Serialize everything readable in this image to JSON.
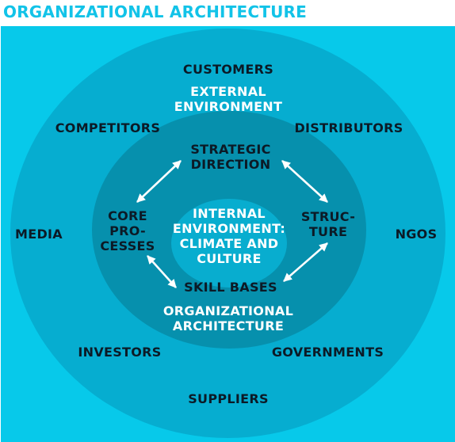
{
  "title": "ORGANIZATIONAL ARCHITECTURE",
  "colors": {
    "title": "#12c3e8",
    "outer": "#07c9ea",
    "ring_external": "#06add0",
    "ring_organizational": "#0690ad",
    "core_internal": "#08adcf",
    "dark_text": "#0c1a26",
    "light_text": "#ffffff"
  },
  "external": {
    "label_lines": [
      "EXTERNAL",
      "ENVIRONMENT"
    ],
    "stakeholders": {
      "customers": "CUSTOMERS",
      "competitors": "COMPETITORS",
      "distributors": "DISTRIBUTORS",
      "media": "MEDIA",
      "ngos": "NGOS",
      "investors": "INVESTORS",
      "governments": "GOVERNMENTS",
      "suppliers": "SUPPLIERS"
    }
  },
  "organizational": {
    "label_lines": [
      "ORGANIZATIONAL",
      "ARCHITECTURE"
    ],
    "elements": {
      "strategic_direction": [
        "STRATEGIC",
        "DIRECTION"
      ],
      "core_processes": [
        "CORE",
        "PRO-",
        "CESSES"
      ],
      "structure": [
        "STRUC-",
        "TURE"
      ],
      "skill_bases": [
        "SKILL BASES"
      ]
    }
  },
  "internal": {
    "label_lines": [
      "INTERNAL",
      "ENVIRONMENT:",
      "CLIMATE AND",
      "CULTURE"
    ]
  },
  "arrows": [
    {
      "from": "strategic_direction",
      "to": "core_processes",
      "direction": "two-way"
    },
    {
      "from": "strategic_direction",
      "to": "structure",
      "direction": "two-way"
    },
    {
      "from": "core_processes",
      "to": "skill_bases",
      "direction": "two-way"
    },
    {
      "from": "structure",
      "to": "skill_bases",
      "direction": "two-way"
    }
  ]
}
